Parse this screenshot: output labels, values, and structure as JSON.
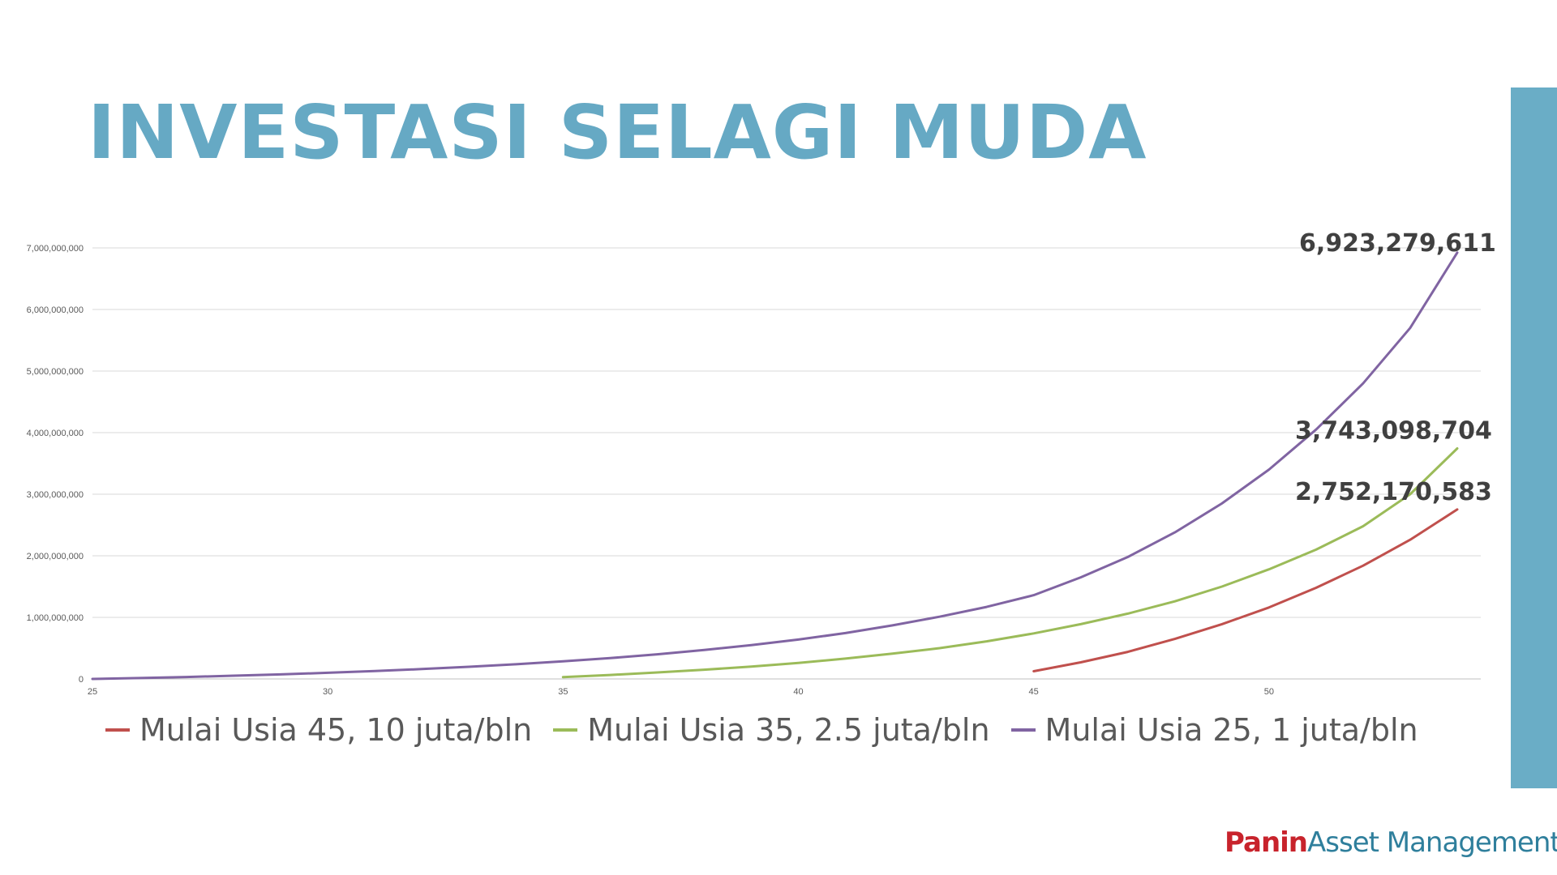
{
  "slide": {
    "title": "INVESTASI SELAGI MUDA",
    "accent_color": "#6aadc6",
    "title_color": "#66a9c4"
  },
  "logo": {
    "brand": "Panin",
    "rest": "Asset Management",
    "brand_color": "#c8232c",
    "rest_color": "#2f7f9c"
  },
  "chart_data": {
    "type": "line",
    "title": "",
    "xlabel": "",
    "ylabel": "",
    "xlim": [
      25,
      54.5
    ],
    "ylim": [
      0,
      7000000000
    ],
    "x_ticks": [
      25,
      30,
      35,
      40,
      45,
      50
    ],
    "x_tick_labels": [
      "25",
      "30",
      "35",
      "40",
      "45",
      "50"
    ],
    "y_ticks": [
      0,
      1000000000,
      2000000000,
      3000000000,
      4000000000,
      5000000000,
      6000000000,
      7000000000
    ],
    "y_tick_labels": [
      "0",
      "1,000,000,000",
      "2,000,000,000",
      "3,000,000,000",
      "4,000,000,000",
      "5,000,000,000",
      "6,000,000,000",
      "7,000,000,000"
    ],
    "grid": true,
    "legend_position": "bottom",
    "series": [
      {
        "name": "Mulai Usia 45, 10 juta/bln",
        "color": "#c0504d",
        "x": [
          45,
          46,
          47,
          48,
          49,
          50,
          51,
          52,
          53,
          54
        ],
        "values": [
          125000000,
          270000000,
          440000000,
          650000000,
          890000000,
          1160000000,
          1480000000,
          1840000000,
          2260000000,
          2752170583
        ],
        "end_label": "2,752,170,583"
      },
      {
        "name": "Mulai Usia 35, 2.5 juta/bln",
        "color": "#9bbb59",
        "x": [
          35,
          36,
          37,
          38,
          39,
          40,
          41,
          42,
          43,
          44,
          45,
          46,
          47,
          48,
          49,
          50,
          51,
          52,
          53,
          54
        ],
        "values": [
          30000000,
          65000000,
          105000000,
          150000000,
          200000000,
          260000000,
          330000000,
          410000000,
          500000000,
          610000000,
          740000000,
          890000000,
          1060000000,
          1260000000,
          1500000000,
          1780000000,
          2100000000,
          2480000000,
          3000000000,
          3743098704
        ],
        "end_label": "3,743,098,704"
      },
      {
        "name": "Mulai Usia 25, 1 juta/bln",
        "color": "#8064a2",
        "x": [
          25,
          26,
          27,
          28,
          29,
          30,
          31,
          32,
          33,
          34,
          35,
          36,
          37,
          38,
          39,
          40,
          41,
          42,
          43,
          44,
          45,
          46,
          47,
          48,
          49,
          50,
          51,
          52,
          53,
          54
        ],
        "values": [
          0,
          15000000,
          32000000,
          52000000,
          74000000,
          100000000,
          128000000,
          160000000,
          197000000,
          238000000,
          285000000,
          338000000,
          400000000,
          470000000,
          550000000,
          640000000,
          745000000,
          870000000,
          1010000000,
          1170000000,
          1360000000,
          1650000000,
          1980000000,
          2380000000,
          2850000000,
          3400000000,
          4050000000,
          4800000000,
          5700000000,
          6923279611
        ],
        "end_label": "6,923,279,611"
      }
    ]
  }
}
